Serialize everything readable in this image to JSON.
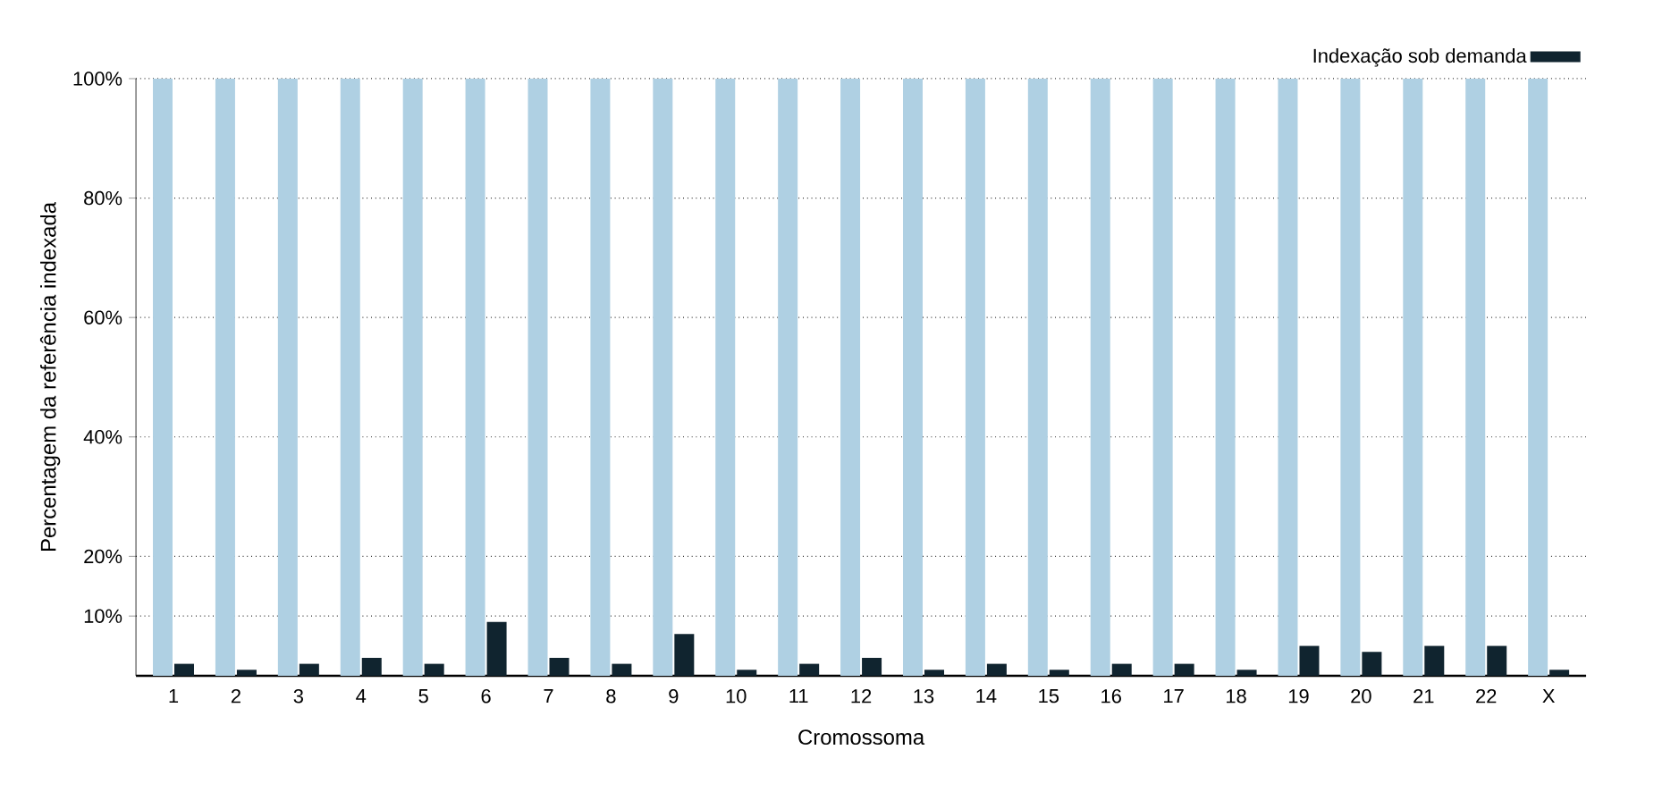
{
  "chart_data": {
    "type": "bar",
    "xlabel": "Cromossoma",
    "ylabel": "Percentagem da referência indexada",
    "categories": [
      "1",
      "2",
      "3",
      "4",
      "5",
      "6",
      "7",
      "8",
      "9",
      "10",
      "11",
      "12",
      "13",
      "14",
      "15",
      "16",
      "17",
      "18",
      "19",
      "20",
      "21",
      "22",
      "X"
    ],
    "series": [
      {
        "color": "#afd0e3",
        "values": [
          100,
          100,
          100,
          100,
          100,
          100,
          100,
          100,
          100,
          100,
          100,
          100,
          100,
          100,
          100,
          100,
          100,
          100,
          100,
          100,
          100,
          100,
          100
        ]
      },
      {
        "name": "Indexação sob demanda",
        "color": "#10242f",
        "values": [
          2,
          1,
          2,
          3,
          2,
          9,
          3,
          2,
          7,
          1,
          2,
          3,
          1,
          2,
          1,
          2,
          2,
          1,
          5,
          4,
          5,
          5,
          1
        ]
      }
    ],
    "ylim": [
      0,
      100
    ],
    "yticks": [
      {
        "value": 10,
        "label": "10%"
      },
      {
        "value": 20,
        "label": "20%"
      },
      {
        "value": 40,
        "label": "40%"
      },
      {
        "value": 60,
        "label": "60%"
      },
      {
        "value": 80,
        "label": "80%"
      },
      {
        "value": 100,
        "label": "100%"
      }
    ],
    "grid": "y",
    "legend": "top right"
  }
}
